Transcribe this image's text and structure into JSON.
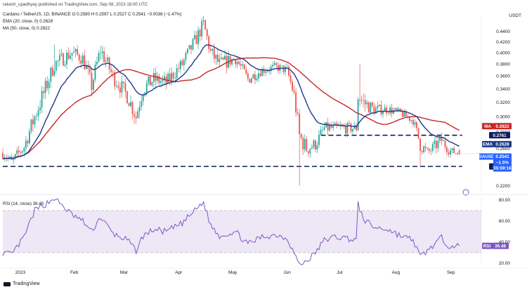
{
  "header": {
    "publish_line": "rakesh_upadhyay published on TradingView.com, Sep 08, 2023 18:00 UTC",
    "symbol_line": "Cardano / TetherUS, 1D, BINANCE  O 0.2580  H 0.2597  L 0.2527  C 0.2541  −0.0038 (−1.47%)",
    "ema_line": "EMA (20, close, 0)  0.2628",
    "ma_line": "MA (50, close, 0)  0.2822",
    "rsi_line": "RSI (14, close)  36.48"
  },
  "unit_label": "USDT",
  "logo_text": "TradingView",
  "colors": {
    "up": "#26a69a",
    "down": "#ef5350",
    "ema": "#1e3a8a",
    "ma": "#c62828",
    "rsi": "#7e57c2",
    "rsi_band": "#ede7f6",
    "level": "#0c1c5e",
    "price_tag": "#2962ff"
  },
  "chart_data": [
    {
      "type": "candlestick",
      "title": "Cardano / TetherUS, 1D, BINANCE",
      "ylabel": "USDT",
      "y_scale": "log",
      "ylim": [
        0.215,
        0.47
      ],
      "y_ticks": [
        0.22,
        0.24,
        0.26,
        0.28,
        0.3,
        0.32,
        0.34,
        0.36,
        0.38,
        0.4,
        0.42,
        0.44
      ],
      "x_ticks": [
        {
          "label": "2023",
          "date": "2023-01-01"
        },
        {
          "label": "Feb",
          "date": "2023-02-01"
        },
        {
          "label": "Mar",
          "date": "2023-03-01"
        },
        {
          "label": "Apr",
          "date": "2023-04-01"
        },
        {
          "label": "May",
          "date": "2023-05-01"
        },
        {
          "label": "Jun",
          "date": "2023-06-01"
        },
        {
          "label": "Jul",
          "date": "2023-07-01"
        },
        {
          "label": "Aug",
          "date": "2023-08-01"
        },
        {
          "label": "Sep",
          "date": "2023-09-01"
        }
      ],
      "x_range": [
        "2022-12-25",
        "2023-09-20"
      ],
      "grid": false,
      "anchors": [
        {
          "date": "2022-12-25",
          "close": 0.255,
          "vol": 0.008
        },
        {
          "date": "2022-12-30",
          "close": 0.245,
          "vol": 0.007
        },
        {
          "date": "2023-01-06",
          "close": 0.262,
          "vol": 0.01
        },
        {
          "date": "2023-01-12",
          "close": 0.3,
          "vol": 0.016
        },
        {
          "date": "2023-01-18",
          "close": 0.34,
          "vol": 0.018
        },
        {
          "date": "2023-01-23",
          "close": 0.38,
          "vol": 0.016
        },
        {
          "date": "2023-02-02",
          "close": 0.4,
          "vol": 0.016
        },
        {
          "date": "2023-02-08",
          "close": 0.39,
          "vol": 0.015
        },
        {
          "date": "2023-02-13",
          "close": 0.345,
          "vol": 0.016
        },
        {
          "date": "2023-02-18",
          "close": 0.405,
          "vol": 0.018
        },
        {
          "date": "2023-02-25",
          "close": 0.36,
          "vol": 0.016
        },
        {
          "date": "2023-03-05",
          "close": 0.33,
          "vol": 0.015
        },
        {
          "date": "2023-03-10",
          "close": 0.3,
          "vol": 0.014
        },
        {
          "date": "2023-03-14",
          "close": 0.34,
          "vol": 0.015
        },
        {
          "date": "2023-03-20",
          "close": 0.355,
          "vol": 0.015
        },
        {
          "date": "2023-03-27",
          "close": 0.35,
          "vol": 0.014
        },
        {
          "date": "2023-04-05",
          "close": 0.38,
          "vol": 0.015
        },
        {
          "date": "2023-04-12",
          "close": 0.42,
          "vol": 0.018
        },
        {
          "date": "2023-04-17",
          "close": 0.455,
          "vol": 0.018
        },
        {
          "date": "2023-04-21",
          "close": 0.4,
          "vol": 0.018
        },
        {
          "date": "2023-04-26",
          "close": 0.38,
          "vol": 0.016
        },
        {
          "date": "2023-05-05",
          "close": 0.39,
          "vol": 0.014
        },
        {
          "date": "2023-05-12",
          "close": 0.355,
          "vol": 0.012
        },
        {
          "date": "2023-05-20",
          "close": 0.37,
          "vol": 0.01
        },
        {
          "date": "2023-05-28",
          "close": 0.375,
          "vol": 0.01
        },
        {
          "date": "2023-06-03",
          "close": 0.37,
          "vol": 0.01
        },
        {
          "date": "2023-06-07",
          "close": 0.33,
          "vol": 0.014
        },
        {
          "date": "2023-06-10",
          "close": 0.275,
          "vol": 0.016
        },
        {
          "date": "2023-06-14",
          "close": 0.26,
          "vol": 0.012
        },
        {
          "date": "2023-06-19",
          "close": 0.265,
          "vol": 0.01
        },
        {
          "date": "2023-06-24",
          "close": 0.285,
          "vol": 0.01
        },
        {
          "date": "2023-06-30",
          "close": 0.285,
          "vol": 0.009
        },
        {
          "date": "2023-07-06",
          "close": 0.285,
          "vol": 0.009
        },
        {
          "date": "2023-07-12",
          "close": 0.285,
          "vol": 0.008
        },
        {
          "date": "2023-07-13",
          "close": 0.33,
          "vol": 0.02
        },
        {
          "date": "2023-07-16",
          "close": 0.32,
          "vol": 0.016
        },
        {
          "date": "2023-07-22",
          "close": 0.31,
          "vol": 0.01
        },
        {
          "date": "2023-07-30",
          "close": 0.31,
          "vol": 0.008
        },
        {
          "date": "2023-08-06",
          "close": 0.305,
          "vol": 0.007
        },
        {
          "date": "2023-08-13",
          "close": 0.295,
          "vol": 0.007
        },
        {
          "date": "2023-08-17",
          "close": 0.265,
          "vol": 0.012
        },
        {
          "date": "2023-08-21",
          "close": 0.255,
          "vol": 0.008
        },
        {
          "date": "2023-08-29",
          "close": 0.27,
          "vol": 0.01
        },
        {
          "date": "2023-09-02",
          "close": 0.258,
          "vol": 0.006
        },
        {
          "date": "2023-09-08",
          "close": 0.2541,
          "vol": 0.005
        }
      ],
      "spike_highs": [
        {
          "date": "2023-01-23",
          "high": 0.415
        },
        {
          "date": "2023-04-17",
          "high": 0.465
        },
        {
          "date": "2023-07-14",
          "high": 0.38
        },
        {
          "date": "2023-08-29",
          "high": 0.276
        }
      ],
      "spike_lows": [
        {
          "date": "2023-06-10",
          "low": 0.22
        },
        {
          "date": "2023-08-17",
          "low": 0.24
        }
      ],
      "series": [
        {
          "name": "EMA (20, close, 0)",
          "last": 0.2628
        },
        {
          "name": "MA (50, close, 0)",
          "last": 0.2822
        }
      ],
      "levels": [
        {
          "value": 0.2761,
          "label": "0.2761",
          "from": "2023-06-22",
          "to": "2023-09-08"
        },
        {
          "value": 0.24,
          "label": "0.2400",
          "from": "2022-12-25",
          "to": "2023-09-08"
        }
      ],
      "price_labels": {
        "ma": {
          "name": "MA",
          "value": "0.2822"
        },
        "ema": {
          "name": "EMA",
          "value": "0.2628"
        },
        "last": {
          "name": "ADAUSDT",
          "value": "0.2541",
          "change": "−1.5%",
          "countdown": "05:59:16"
        }
      }
    },
    {
      "type": "line",
      "title": "RSI (14, close)",
      "ylim": [
        18,
        82
      ],
      "y_ticks": [
        20.0,
        40.0,
        60.0,
        80.0
      ],
      "band": [
        30,
        70
      ],
      "last": {
        "name": "RSI",
        "value": "36.48"
      },
      "anchors": [
        {
          "date": "2022-12-25",
          "value": 30
        },
        {
          "date": "2022-12-30",
          "value": 28
        },
        {
          "date": "2023-01-06",
          "value": 45
        },
        {
          "date": "2023-01-12",
          "value": 70
        },
        {
          "date": "2023-01-18",
          "value": 76
        },
        {
          "date": "2023-01-23",
          "value": 82
        },
        {
          "date": "2023-02-02",
          "value": 66
        },
        {
          "date": "2023-02-08",
          "value": 60
        },
        {
          "date": "2023-02-13",
          "value": 50
        },
        {
          "date": "2023-02-18",
          "value": 64
        },
        {
          "date": "2023-02-25",
          "value": 48
        },
        {
          "date": "2023-03-05",
          "value": 42
        },
        {
          "date": "2023-03-10",
          "value": 32
        },
        {
          "date": "2023-03-14",
          "value": 46
        },
        {
          "date": "2023-03-20",
          "value": 52
        },
        {
          "date": "2023-03-27",
          "value": 50
        },
        {
          "date": "2023-04-05",
          "value": 58
        },
        {
          "date": "2023-04-12",
          "value": 70
        },
        {
          "date": "2023-04-17",
          "value": 78
        },
        {
          "date": "2023-04-21",
          "value": 56
        },
        {
          "date": "2023-04-26",
          "value": 46
        },
        {
          "date": "2023-05-05",
          "value": 50
        },
        {
          "date": "2023-05-12",
          "value": 38
        },
        {
          "date": "2023-05-20",
          "value": 45
        },
        {
          "date": "2023-05-28",
          "value": 47
        },
        {
          "date": "2023-06-03",
          "value": 44
        },
        {
          "date": "2023-06-07",
          "value": 30
        },
        {
          "date": "2023-06-10",
          "value": 18
        },
        {
          "date": "2023-06-14",
          "value": 22
        },
        {
          "date": "2023-06-19",
          "value": 30
        },
        {
          "date": "2023-06-24",
          "value": 42
        },
        {
          "date": "2023-06-30",
          "value": 45
        },
        {
          "date": "2023-07-06",
          "value": 44
        },
        {
          "date": "2023-07-12",
          "value": 42
        },
        {
          "date": "2023-07-13",
          "value": 76
        },
        {
          "date": "2023-07-16",
          "value": 62
        },
        {
          "date": "2023-07-22",
          "value": 54
        },
        {
          "date": "2023-07-30",
          "value": 52
        },
        {
          "date": "2023-08-06",
          "value": 46
        },
        {
          "date": "2023-08-13",
          "value": 42
        },
        {
          "date": "2023-08-17",
          "value": 26
        },
        {
          "date": "2023-08-21",
          "value": 32
        },
        {
          "date": "2023-08-29",
          "value": 44
        },
        {
          "date": "2023-09-02",
          "value": 37
        },
        {
          "date": "2023-09-08",
          "value": 36.48
        }
      ]
    }
  ]
}
